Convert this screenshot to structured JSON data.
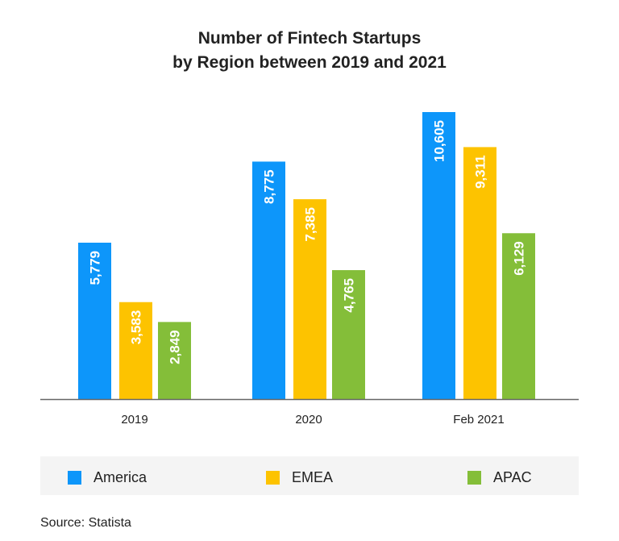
{
  "chart_data": {
    "type": "bar",
    "title_line1": "Number of Fintech Startups",
    "title_line2": "by Region between 2019 and 2021",
    "categories": [
      "2019",
      "2020",
      "Feb 2021"
    ],
    "series": [
      {
        "name": "America",
        "color": "#0d96fa",
        "values": [
          5779,
          8775,
          10605
        ],
        "labels": [
          "5,779",
          "8,775",
          "10,605"
        ]
      },
      {
        "name": "EMEA",
        "color": "#fdc300",
        "values": [
          3583,
          7385,
          9311
        ],
        "labels": [
          "3,583",
          "7,385",
          "9,311"
        ]
      },
      {
        "name": "APAC",
        "color": "#84be39",
        "values": [
          2849,
          4765,
          6129
        ],
        "labels": [
          "2,849",
          "4,765",
          "6,129"
        ]
      }
    ],
    "xlabel": "",
    "ylabel": "",
    "ylim": [
      0,
      10605
    ],
    "grid": false,
    "legend_position": "bottom"
  },
  "source": "Source: Statista"
}
